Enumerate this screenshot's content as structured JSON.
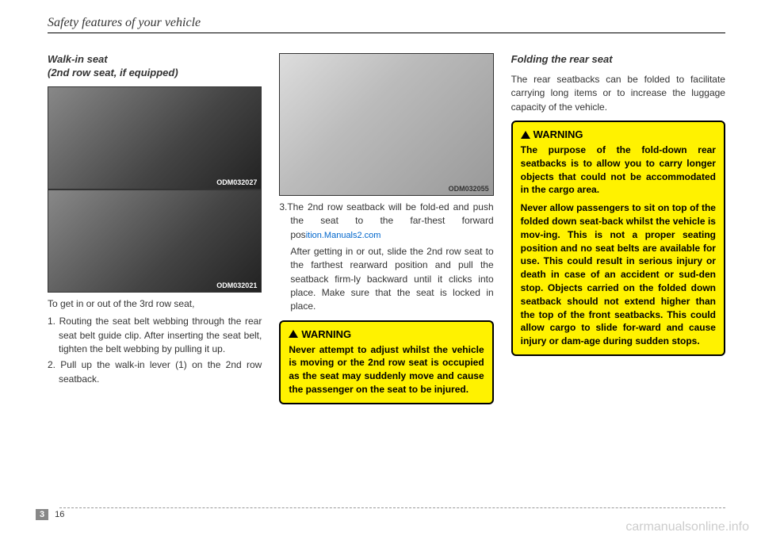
{
  "header": {
    "title": "Safety features of your vehicle"
  },
  "column1": {
    "section_title_line1": "Walk-in seat",
    "section_title_line2": "(2nd row seat, if equipped)",
    "image1_label": "ODM032027",
    "image2_label": "ODM032021",
    "intro": "To get in or out of the 3rd row seat,",
    "item1": "1. Routing the seat belt webbing through the rear seat belt guide clip. After inserting the seat belt, tighten the belt webbing by pulling it up.",
    "item2": "2. Pull up the walk-in lever (1) on the 2nd row seatback."
  },
  "column2": {
    "image_label": "ODM032055",
    "item3_part1": "3.The 2nd row seatback will be fold-ed and  push the seat to the far-thest forward pos",
    "item3_link": "ition.Manuals2.com",
    "item3_cont": "After getting in or out, slide the 2nd row seat to the farthest rearward position and pull the seatback firm-ly backward until it clicks into place. Make sure that the seat is locked in place.",
    "warning_label": "WARNING",
    "warning_text": "Never attempt to adjust whilst the vehicle is moving or the 2nd row seat is occupied as the seat may suddenly move and cause the passenger on the seat to be injured."
  },
  "column3": {
    "section_title": "Folding the rear seat",
    "body": "The rear seatbacks can be folded to facilitate carrying long items or to increase the luggage capacity of the vehicle.",
    "warning_label": "WARNING",
    "warning_p1": "The purpose of the fold-down rear seatbacks is to allow you to carry longer objects that could not be accommodated in the cargo area.",
    "warning_p2": "Never allow passengers to sit on top of the folded down seat-back whilst the vehicle is mov-ing. This is not a proper seating position and no seat belts are available for use. This could result in serious injury or death in case of an accident or sud-den stop. Objects carried on the folded down seatback should not extend higher than the top of the front seatbacks. This could allow cargo to slide for-ward and cause injury or dam-age during sudden stops."
  },
  "footer": {
    "section": "3",
    "page": "16"
  },
  "watermark": "carmanualsonline.info"
}
